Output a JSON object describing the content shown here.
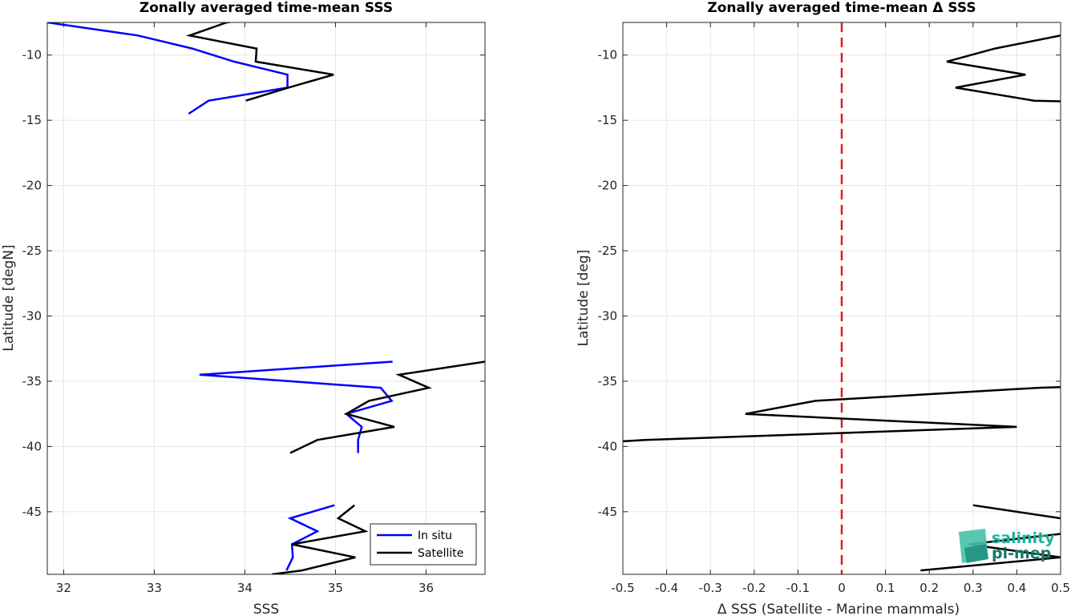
{
  "chart_data": [
    {
      "type": "line",
      "title": "Zonally averaged time-mean SSS",
      "xlabel": "SSS",
      "ylabel": "Latitude [degN]",
      "xlim": [
        31.82,
        36.65
      ],
      "ylim": [
        -49.8,
        -7.5
      ],
      "xticks": [
        32,
        33,
        34,
        35,
        36
      ],
      "yticks": [
        -10,
        -15,
        -20,
        -25,
        -30,
        -35,
        -40,
        -45
      ],
      "grid": true,
      "legend_position": "bottom-right",
      "series": [
        {
          "name": "In situ",
          "color": "#0000ff",
          "segments": [
            [
              [
                31.82,
                -7.5
              ],
              [
                32.82,
                -8.5
              ],
              [
                33.42,
                -9.5
              ],
              [
                33.88,
                -10.5
              ],
              [
                34.47,
                -11.5
              ],
              [
                34.47,
                -12.5
              ],
              [
                33.6,
                -13.5
              ],
              [
                33.38,
                -14.5
              ]
            ],
            [
              [
                35.63,
                -33.5
              ],
              [
                33.5,
                -34.5
              ],
              [
                35.5,
                -35.5
              ],
              [
                35.62,
                -36.5
              ],
              [
                35.12,
                -37.5
              ],
              [
                35.29,
                -38.5
              ],
              [
                35.25,
                -39.5
              ],
              [
                35.25,
                -40.5
              ]
            ],
            [
              [
                34.99,
                -44.5
              ],
              [
                34.5,
                -45.5
              ],
              [
                34.8,
                -46.5
              ],
              [
                34.52,
                -47.5
              ],
              [
                34.53,
                -48.5
              ],
              [
                34.46,
                -49.5
              ]
            ]
          ]
        },
        {
          "name": "Satellite",
          "color": "#000000",
          "segments": [
            [
              [
                34.2,
                -7.1
              ],
              [
                33.8,
                -7.5
              ],
              [
                33.39,
                -8.5
              ],
              [
                34.13,
                -9.5
              ],
              [
                34.12,
                -10.5
              ],
              [
                34.98,
                -11.5
              ],
              [
                34.48,
                -12.5
              ],
              [
                34.01,
                -13.5
              ]
            ],
            [
              [
                36.65,
                -33.5
              ],
              [
                35.7,
                -34.5
              ],
              [
                36.03,
                -35.5
              ],
              [
                35.37,
                -36.5
              ],
              [
                35.12,
                -37.5
              ],
              [
                35.65,
                -38.5
              ],
              [
                34.8,
                -39.5
              ],
              [
                34.5,
                -40.5
              ]
            ],
            [
              [
                35.21,
                -44.5
              ],
              [
                35.03,
                -45.5
              ],
              [
                35.33,
                -46.5
              ],
              [
                34.52,
                -47.5
              ],
              [
                35.22,
                -48.5
              ],
              [
                34.63,
                -49.5
              ],
              [
                34.3,
                -49.8
              ]
            ]
          ]
        }
      ]
    },
    {
      "type": "line",
      "title": "Zonally averaged time-mean Δ SSS",
      "xlabel": "Δ SSS (Satellite - Marine mammals)",
      "ylabel": "Latitude [deg]",
      "xlim": [
        -0.5,
        0.5
      ],
      "ylim": [
        -49.8,
        -7.5
      ],
      "xticks": [
        -0.5,
        -0.4,
        -0.3,
        -0.2,
        -0.1,
        0,
        0.1,
        0.2,
        0.3,
        0.4,
        0.5
      ],
      "xtick_labels": [
        "-0.5",
        "-0.4",
        "-0.3",
        "-0.2",
        "-0.1",
        "0",
        "0.1",
        "0.2",
        "0.3",
        "0.4",
        "0.5"
      ],
      "yticks": [
        -10,
        -15,
        -20,
        -25,
        -30,
        -35,
        -40,
        -45
      ],
      "grid": true,
      "reference_line": {
        "x": 0,
        "color": "#e31a1c",
        "style": "dashed"
      },
      "series": [
        {
          "color": "#000000",
          "segments": [
            [
              [
                0.5,
                -8.5
              ],
              [
                0.35,
                -9.5
              ],
              [
                0.24,
                -10.5
              ],
              [
                0.42,
                -11.5
              ],
              [
                0.26,
                -12.5
              ],
              [
                0.44,
                -13.5
              ],
              [
                0.5,
                -13.55
              ]
            ],
            [
              [
                0.5,
                -35.45
              ],
              [
                0.45,
                -35.5
              ],
              [
                -0.06,
                -36.5
              ],
              [
                -0.22,
                -37.5
              ],
              [
                0.4,
                -38.5
              ],
              [
                -0.45,
                -39.5
              ],
              [
                -0.5,
                -39.6
              ]
            ],
            [
              [
                0.3,
                -44.5
              ],
              [
                0.5,
                -45.5
              ]
            ],
            [
              [
                0.5,
                -46.7
              ],
              [
                0.29,
                -47.5
              ],
              [
                0.5,
                -48.5
              ],
              [
                0.18,
                -49.5
              ]
            ]
          ]
        }
      ]
    }
  ],
  "logo": {
    "line1": "salinity",
    "line2": "pi-mep"
  }
}
